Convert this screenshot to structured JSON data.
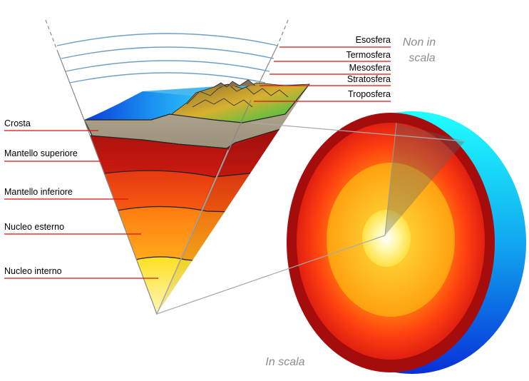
{
  "labels": {
    "atmosphere": {
      "exosphere": "Esosfera",
      "thermosphere": "Termosfera",
      "mesosphere": "Mesosfera",
      "stratosphere": "Stratosfera",
      "troposphere": "Troposfera"
    },
    "earth": {
      "crust": "Crosta",
      "upper_mantle": "Mantello superiore",
      "lower_mantle": "Mantello inferiore",
      "outer_core": "Nucleo esterno",
      "inner_core": "Nucleo interno"
    }
  },
  "notes": {
    "not_to_scale_line1": "Non in",
    "not_to_scale_line2": "scala",
    "to_scale": "In scala"
  },
  "colors": {
    "leader": "#dd1111",
    "atmosphere_lines": "#6f9fc6",
    "ocean": "#1a78e8",
    "crust": "#aa9f88",
    "mantle_upper": "#bb1010",
    "mantle_lower": "#ee5010",
    "outer_core": "#ff9a10",
    "inner_core": "#ffe020",
    "sphere_shell": "#aa0e0e",
    "sphere_side": "#1aa0ee"
  }
}
